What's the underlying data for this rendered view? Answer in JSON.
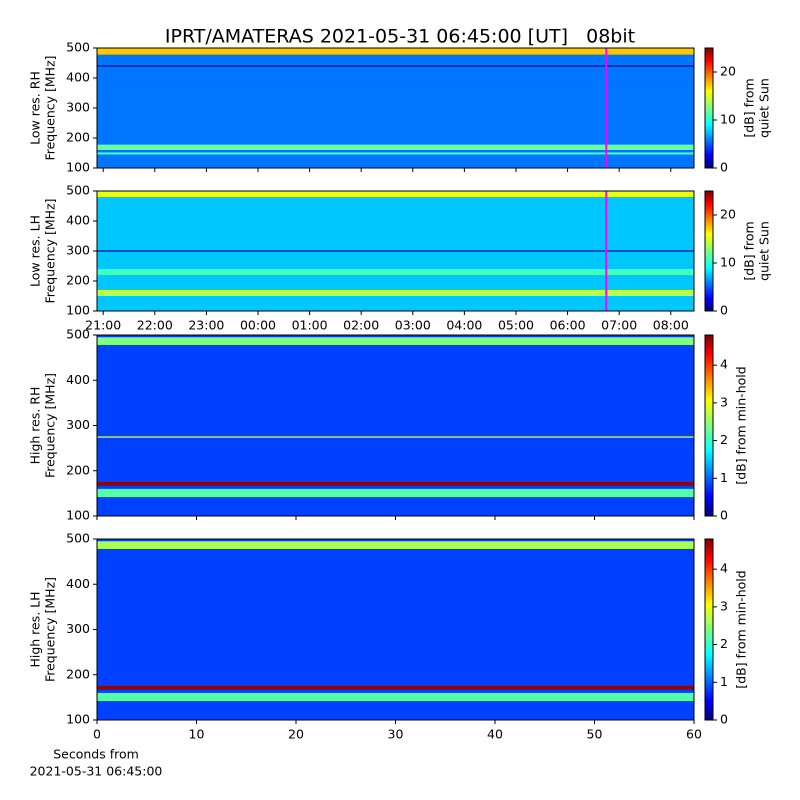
{
  "chart_data": [
    {
      "type": "spectrogram",
      "title": "IPRT/AMATERAS 2021-05-31 06:45:00 [UT]   08bit",
      "ylabel": [
        "Low res. RH",
        "Frequency [MHz]"
      ],
      "xlim": [
        20.88,
        32.45
      ],
      "xticks": [
        {
          "value": 21,
          "label": "21:00"
        },
        {
          "value": 22,
          "label": "22:00"
        },
        {
          "value": 23,
          "label": "23:00"
        },
        {
          "value": 24,
          "label": "00:00"
        },
        {
          "value": 25,
          "label": "01:00"
        },
        {
          "value": 26,
          "label": "02:00"
        },
        {
          "value": 27,
          "label": "03:00"
        },
        {
          "value": 28,
          "label": "04:00"
        },
        {
          "value": 29,
          "label": "05:00"
        },
        {
          "value": 30,
          "label": "06:00"
        },
        {
          "value": 31,
          "label": "07:00"
        },
        {
          "value": 32,
          "label": "08:00"
        }
      ],
      "show_xtick_labels": false,
      "ylim": [
        100,
        500
      ],
      "yticks": [
        100,
        200,
        300,
        400,
        500
      ],
      "marker_x": 30.75,
      "marker_color": "#ff00ff",
      "background_level": 6,
      "bands": [
        {
          "fmin": 478,
          "fmax": 500,
          "level": 17
        },
        {
          "fmin": 160,
          "fmax": 178,
          "level": 12
        },
        {
          "fmin": 438,
          "fmax": 442,
          "level": 0
        },
        {
          "fmin": 145,
          "fmax": 152,
          "level": 11
        }
      ],
      "colorbar_label": [
        "[dB] from",
        "quiet Sun"
      ],
      "clim": [
        0,
        25
      ],
      "cticks": [
        0,
        10,
        20
      ]
    },
    {
      "type": "spectrogram",
      "ylabel": [
        "Low res. LH",
        "Frequency [MHz]"
      ],
      "xlim": [
        20.88,
        32.45
      ],
      "xticks": [
        {
          "value": 21,
          "label": "21:00"
        },
        {
          "value": 22,
          "label": "22:00"
        },
        {
          "value": 23,
          "label": "23:00"
        },
        {
          "value": 24,
          "label": "00:00"
        },
        {
          "value": 25,
          "label": "01:00"
        },
        {
          "value": 26,
          "label": "02:00"
        },
        {
          "value": 27,
          "label": "03:00"
        },
        {
          "value": 28,
          "label": "04:00"
        },
        {
          "value": 29,
          "label": "05:00"
        },
        {
          "value": 30,
          "label": "06:00"
        },
        {
          "value": 31,
          "label": "07:00"
        },
        {
          "value": 32,
          "label": "08:00"
        }
      ],
      "show_xtick_labels": true,
      "ylim": [
        100,
        500
      ],
      "yticks": [
        100,
        200,
        300,
        400,
        500
      ],
      "marker_x": 30.75,
      "marker_color": "#ff00ff",
      "background_level": 8,
      "bands": [
        {
          "fmin": 480,
          "fmax": 500,
          "level": 15
        },
        {
          "fmin": 150,
          "fmax": 170,
          "level": 14
        },
        {
          "fmin": 220,
          "fmax": 240,
          "level": 11
        },
        {
          "fmin": 298,
          "fmax": 302,
          "level": 1
        }
      ],
      "colorbar_label": [
        "[dB] from",
        "quiet Sun"
      ],
      "clim": [
        0,
        25
      ],
      "cticks": [
        0,
        10,
        20
      ]
    },
    {
      "type": "spectrogram",
      "ylabel": [
        "High res. RH",
        "Frequency [MHz]"
      ],
      "xlim": [
        0,
        60
      ],
      "xticks": [
        0,
        10,
        20,
        30,
        40,
        50,
        60
      ],
      "show_xtick_labels": false,
      "ylim": [
        100,
        500
      ],
      "yticks": [
        100,
        200,
        300,
        400,
        500
      ],
      "background_level": 0.9,
      "bands": [
        {
          "fmin": 478,
          "fmax": 495,
          "level": 2.4
        },
        {
          "fmin": 167,
          "fmax": 175,
          "level": 4.7
        },
        {
          "fmin": 142,
          "fmax": 160,
          "level": 2.2
        },
        {
          "fmin": 273,
          "fmax": 276,
          "level": 2.8
        }
      ],
      "colorbar_label": [
        "[dB] from min-hold"
      ],
      "clim": [
        0,
        4.8
      ],
      "cticks": [
        0,
        1,
        2,
        3,
        4
      ]
    },
    {
      "type": "spectrogram",
      "ylabel": [
        "High res. LH",
        "Frequency [MHz]"
      ],
      "xlim": [
        0,
        60
      ],
      "xticks": [
        0,
        10,
        20,
        30,
        40,
        50,
        60
      ],
      "show_xtick_labels": true,
      "xlabel": [
        "Seconds from",
        "2021-05-31 06:45:00"
      ],
      "ylim": [
        100,
        500
      ],
      "yticks": [
        100,
        200,
        300,
        400,
        500
      ],
      "background_level": 0.9,
      "bands": [
        {
          "fmin": 478,
          "fmax": 495,
          "level": 2.6
        },
        {
          "fmin": 167,
          "fmax": 175,
          "level": 4.7
        },
        {
          "fmin": 142,
          "fmax": 160,
          "level": 2.2
        }
      ],
      "colorbar_label": [
        "[dB] from min-hold"
      ],
      "clim": [
        0,
        4.8
      ],
      "cticks": [
        0,
        1,
        2,
        3,
        4
      ]
    }
  ]
}
